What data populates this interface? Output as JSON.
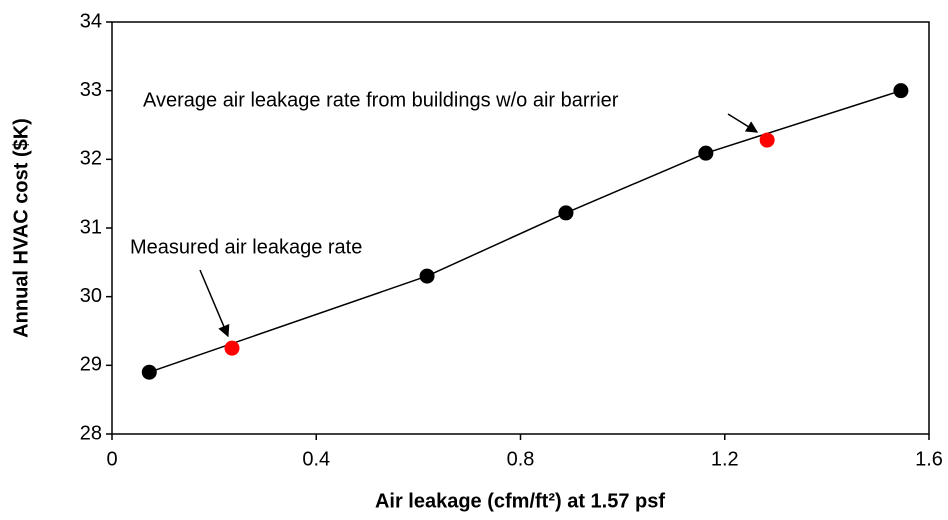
{
  "chart_data": {
    "type": "scatter",
    "xlabel": "Air leakage (cfm/ft²) at 1.57 psf",
    "ylabel": "Annual HVAC cost ($K)",
    "xlim": [
      0,
      1.6
    ],
    "xticks": [
      0,
      0.4,
      0.8,
      1.2,
      1.6
    ],
    "ylim": [
      28,
      34
    ],
    "yticks": [
      28,
      29,
      30,
      31,
      32,
      33,
      34
    ],
    "series": [
      {
        "color": "#000000",
        "line": true,
        "x": [
          0.073,
          0.617,
          0.889,
          1.163,
          1.545
        ],
        "values": [
          28.9,
          30.3,
          31.22,
          32.09,
          33.0
        ]
      },
      {
        "color": "#ff0000",
        "line": false,
        "x": [
          0.235,
          1.283
        ],
        "values": [
          29.25,
          32.28
        ]
      }
    ],
    "annotations": [
      "Measured air leakage rate",
      "Average air leakage rate from buildings w/o air barrier"
    ]
  }
}
